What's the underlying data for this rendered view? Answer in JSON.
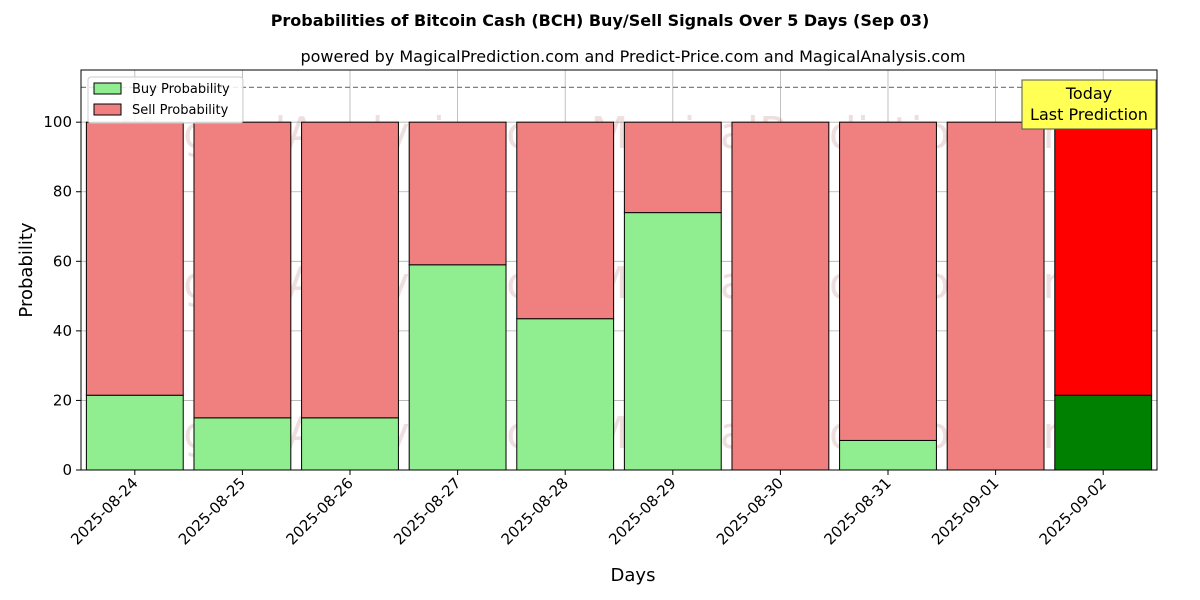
{
  "chart_data": {
    "type": "bar",
    "stacked": true,
    "title": "Probabilities of Bitcoin Cash (BCH) Buy/Sell Signals Over 5 Days (Sep 03)",
    "subtitle": "powered by MagicalPrediction.com and Predict-Price.com and MagicalAnalysis.com",
    "xlabel": "Days",
    "ylabel": "Probability",
    "ylim": [
      0,
      115
    ],
    "yticks": [
      "0",
      "20",
      "40",
      "60",
      "80",
      "100"
    ],
    "categories": [
      "2025-08-24",
      "2025-08-25",
      "2025-08-26",
      "2025-08-27",
      "2025-08-28",
      "2025-08-29",
      "2025-08-30",
      "2025-08-31",
      "2025-09-01",
      "2025-09-02"
    ],
    "series": [
      {
        "name": "Buy Probability",
        "values": [
          21.5,
          15,
          15,
          59,
          43.5,
          74,
          0,
          8.5,
          0,
          21.5
        ]
      },
      {
        "name": "Sell Probability",
        "values": [
          78.5,
          85,
          85,
          41,
          56.5,
          26,
          100,
          91.5,
          100,
          78.5
        ]
      }
    ],
    "colors": {
      "buy": "#90ee90",
      "sell": "#f08080",
      "buy_highlight": "#008000",
      "sell_highlight": "#ff0000",
      "reference_line": "#808080",
      "annotation_bg": "#ffff54"
    },
    "reference_line": 110,
    "highlight_index": 9,
    "annotation": {
      "line1": "Today",
      "line2": "Last Prediction"
    },
    "legend_position": "top-left",
    "grid": true,
    "watermarks": [
      "MagicalAnalysis.com",
      "MagicalPrediction.com"
    ]
  }
}
